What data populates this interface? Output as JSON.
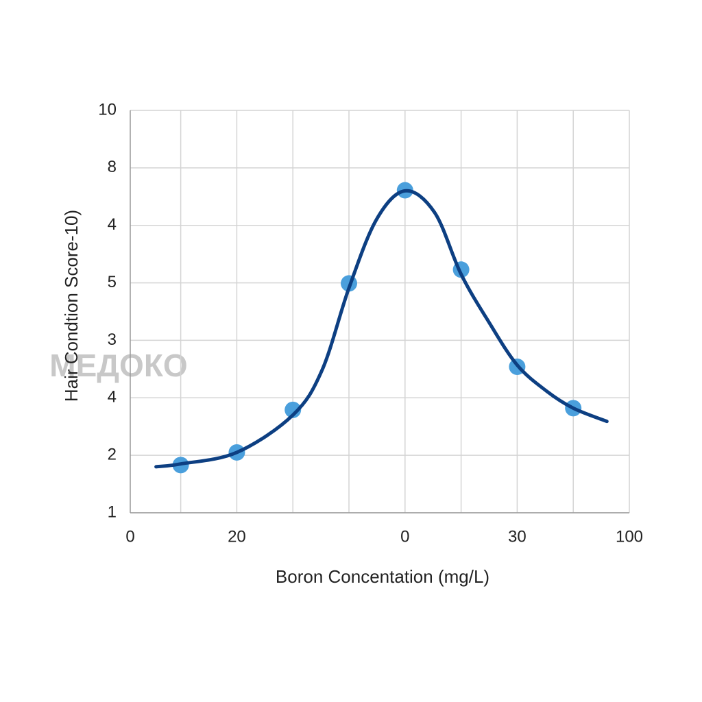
{
  "chart_data": {
    "type": "scatter",
    "x_label": "Boron Concentation (mg/L)",
    "y_label": "Hair Condtion Score-10)",
    "watermark": "МЕДОКО",
    "xlim": [
      0.1,
      9
    ],
    "ylim": [
      0,
      7
    ],
    "xticks": [
      {
        "value": 0.1,
        "label": "0"
      },
      {
        "value": 2,
        "label": "20"
      },
      {
        "value": 5,
        "label": "0"
      },
      {
        "value": 7,
        "label": "30"
      },
      {
        "value": 9,
        "label": "100"
      }
    ],
    "yticks": [
      {
        "value": 0,
        "label": "1"
      },
      {
        "value": 1,
        "label": "2"
      },
      {
        "value": 2,
        "label": "4"
      },
      {
        "value": 3,
        "label": "3"
      },
      {
        "value": 4,
        "label": "5"
      },
      {
        "value": 5,
        "label": "4"
      },
      {
        "value": 6,
        "label": "8"
      },
      {
        "value": 7,
        "label": "10"
      }
    ],
    "xgrid": [
      1,
      2,
      3,
      4,
      5,
      6,
      7,
      8,
      9
    ],
    "grid": true,
    "points": {
      "color": "#4a9fdc",
      "x": [
        1,
        2,
        3,
        4,
        5,
        6,
        7,
        8
      ],
      "values": [
        0.83,
        1.05,
        1.79,
        3.99,
        5.61,
        4.23,
        2.54,
        1.82
      ]
    },
    "fit": {
      "color": "#0d3f82",
      "x": [
        0.56,
        1.0,
        2.0,
        3.0,
        3.52,
        4.0,
        4.49,
        5.0,
        5.53,
        6.0,
        6.5,
        7.0,
        7.52,
        8.0,
        8.6
      ],
      "values": [
        0.8,
        0.85,
        1.05,
        1.7,
        2.48,
        3.91,
        5.1,
        5.6,
        5.22,
        4.15,
        3.31,
        2.57,
        2.12,
        1.82,
        1.59
      ]
    }
  }
}
